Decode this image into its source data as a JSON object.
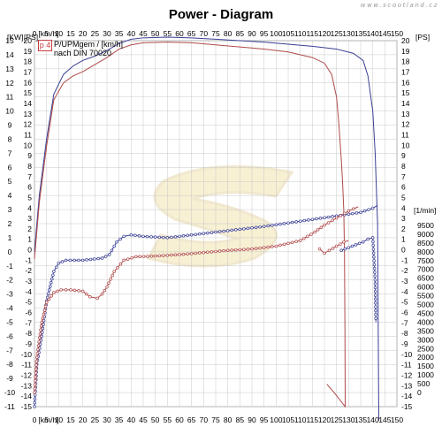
{
  "title": "Power - Diagram",
  "watermark": "www.scootland.cz",
  "legend": {
    "box_label": "p 4",
    "line1": "P/UPMgem / [km/h]",
    "line2": "nach DIN 70020"
  },
  "colors": {
    "blue": "#3a3f94",
    "red": "#b04a4a",
    "grid": "#c8c8c8",
    "watermark_logo": "#f2e4b0"
  },
  "chart_data": {
    "type": "line",
    "title": "Power - Diagram",
    "grid": true,
    "axes": {
      "top_x": {
        "label": "[km/h]",
        "ticks": [
          "0",
          "5",
          "10",
          "15",
          "20",
          "25",
          "30",
          "35",
          "40",
          "45",
          "50",
          "55",
          "60",
          "65",
          "70",
          "75",
          "80",
          "85",
          "90",
          "95",
          "100",
          "105",
          "110",
          "115",
          "120",
          "125",
          "130",
          "135",
          "140",
          "145",
          "150"
        ]
      },
      "bottom_x": {
        "label": "[km/h]",
        "ticks": [
          "0",
          "5",
          "10",
          "15",
          "20",
          "25",
          "30",
          "35",
          "40",
          "45",
          "50",
          "55",
          "60",
          "65",
          "70",
          "75",
          "80",
          "85",
          "90",
          "95",
          "100",
          "105",
          "110",
          "115",
          "120",
          "125",
          "130",
          "135",
          "140",
          "145",
          "150"
        ]
      },
      "left_kw": {
        "label": "[KW]",
        "ticks": [
          "15",
          "14",
          "13",
          "12",
          "11",
          "10",
          "9",
          "8",
          "7",
          "6",
          "5",
          "4",
          "3",
          "2",
          "1",
          "0",
          "-1",
          "-2",
          "-3",
          "-4",
          "-5",
          "-6",
          "-7",
          "-8",
          "-9",
          "-10",
          "-11"
        ]
      },
      "left_ps": {
        "label": "[PS]",
        "ticks": [
          "20",
          "19",
          "18",
          "17",
          "16",
          "15",
          "14",
          "13",
          "12",
          "11",
          "10",
          "9",
          "8",
          "7",
          "6",
          "5",
          "4",
          "3",
          "2",
          "1",
          "0",
          "-1",
          "-2",
          "-3",
          "-4",
          "-5",
          "-6",
          "-7",
          "-8",
          "-9",
          "-10",
          "-11",
          "-12",
          "-13",
          "-14",
          "-15"
        ]
      },
      "right_ps": {
        "label": "[PS]",
        "ticks": [
          "20",
          "19",
          "18",
          "17",
          "16",
          "15",
          "14",
          "13",
          "12",
          "11",
          "10",
          "9",
          "8",
          "7",
          "6",
          "5",
          "4",
          "3",
          "2",
          "1",
          "0",
          "-1",
          "-2",
          "-3",
          "-4",
          "-5",
          "-6",
          "-7",
          "-8",
          "-9",
          "-10",
          "-11",
          "-12",
          "-13",
          "-14",
          "-15"
        ]
      },
      "right_rpm": {
        "label": "[1/min]",
        "ticks": [
          "9500",
          "9000",
          "8500",
          "8000",
          "7500",
          "7000",
          "6500",
          "6000",
          "5500",
          "5000",
          "4500",
          "4000",
          "3500",
          "3000",
          "2500",
          "2000",
          "1500",
          "1000",
          "500",
          "0"
        ]
      }
    },
    "series": [
      {
        "color": "#3a3f94",
        "kind": "power",
        "points": [
          [
            0,
            0
          ],
          [
            2,
            4
          ],
          [
            5,
            8
          ],
          [
            8,
            11.2
          ],
          [
            12,
            12.6
          ],
          [
            16,
            13.2
          ],
          [
            20,
            13.6
          ],
          [
            25,
            13.9
          ],
          [
            30,
            14.3
          ],
          [
            35,
            14.8
          ],
          [
            40,
            15.1
          ],
          [
            45,
            15.2
          ],
          [
            55,
            15.25
          ],
          [
            65,
            15.2
          ],
          [
            75,
            15.1
          ],
          [
            85,
            15
          ],
          [
            95,
            14.9
          ],
          [
            105,
            14.75
          ],
          [
            115,
            14.6
          ],
          [
            125,
            14.4
          ],
          [
            132,
            14.1
          ],
          [
            136,
            13.6
          ],
          [
            138,
            12.5
          ],
          [
            140,
            10
          ],
          [
            141,
            7
          ],
          [
            142,
            2
          ],
          [
            142.5,
            -12
          ]
        ]
      },
      {
        "color": "#b04a4a",
        "kind": "power",
        "points": [
          [
            0,
            -0.5
          ],
          [
            2,
            3.5
          ],
          [
            5,
            7.5
          ],
          [
            8,
            10.8
          ],
          [
            12,
            12
          ],
          [
            16,
            12.5
          ],
          [
            20,
            12.8
          ],
          [
            25,
            13.3
          ],
          [
            30,
            13.8
          ],
          [
            35,
            14.4
          ],
          [
            40,
            14.7
          ],
          [
            45,
            14.85
          ],
          [
            55,
            14.9
          ],
          [
            65,
            14.85
          ],
          [
            75,
            14.7
          ],
          [
            85,
            14.55
          ],
          [
            95,
            14.4
          ],
          [
            105,
            14.2
          ],
          [
            115,
            13.8
          ],
          [
            120,
            13.4
          ],
          [
            123,
            12.6
          ],
          [
            125,
            11
          ],
          [
            126,
            9
          ],
          [
            127,
            6.5
          ],
          [
            127.5,
            5
          ],
          [
            128,
            3
          ],
          [
            128.3,
            0
          ],
          [
            128.5,
            -6
          ],
          [
            128.6,
            -11
          ],
          [
            124,
            -10
          ],
          [
            121,
            -9.4
          ]
        ]
      },
      {
        "color": "#3a3f94",
        "kind": "rpm",
        "points": [
          [
            0,
            -11
          ],
          [
            1,
            -8
          ],
          [
            3,
            -6
          ],
          [
            5,
            -3.5
          ],
          [
            8,
            -1.4
          ],
          [
            10,
            -0.8
          ],
          [
            13,
            -0.6
          ],
          [
            20,
            -0.6
          ],
          [
            28,
            -0.45
          ],
          [
            31,
            -0.2
          ],
          [
            34,
            0.7
          ],
          [
            37,
            1.1
          ],
          [
            40,
            1.2
          ],
          [
            45,
            1.1
          ],
          [
            55,
            1
          ],
          [
            65,
            1.2
          ],
          [
            75,
            1.4
          ],
          [
            85,
            1.6
          ],
          [
            95,
            1.8
          ],
          [
            105,
            2.05
          ],
          [
            115,
            2.3
          ],
          [
            125,
            2.55
          ],
          [
            135,
            2.8
          ],
          [
            140,
            3.1
          ],
          [
            142,
            3.3
          ]
        ]
      },
      {
        "color": "#b04a4a",
        "kind": "rpm",
        "points": [
          [
            0,
            -10
          ],
          [
            1,
            -7.5
          ],
          [
            3,
            -5
          ],
          [
            5,
            -3.6
          ],
          [
            8,
            -2.9
          ],
          [
            11,
            -2.7
          ],
          [
            15,
            -2.7
          ],
          [
            20,
            -2.8
          ],
          [
            23,
            -3.2
          ],
          [
            26,
            -3.3
          ],
          [
            28,
            -3
          ],
          [
            30,
            -2.5
          ],
          [
            33,
            -1.4
          ],
          [
            37,
            -0.6
          ],
          [
            42,
            -0.35
          ],
          [
            50,
            -0.3
          ],
          [
            60,
            -0.2
          ],
          [
            70,
            -0.05
          ],
          [
            80,
            0.1
          ],
          [
            90,
            0.2
          ],
          [
            100,
            0.4
          ],
          [
            110,
            0.8
          ],
          [
            116,
            1.4
          ],
          [
            120,
            1.9
          ],
          [
            125,
            2.4
          ],
          [
            130,
            2.9
          ],
          [
            134,
            3.2
          ]
        ]
      },
      {
        "color": "#b04a4a",
        "kind": "rpm",
        "points": [
          [
            118,
            0.2
          ],
          [
            120,
            -0.1
          ],
          [
            122,
            0.1
          ],
          [
            125,
            0.4
          ],
          [
            128,
            0.7
          ],
          [
            130,
            0.8
          ]
        ]
      },
      {
        "color": "#3a3f94",
        "kind": "rpm",
        "points": [
          [
            127,
            0.1
          ],
          [
            130,
            0.3
          ],
          [
            133,
            0.5
          ],
          [
            136,
            0.7
          ],
          [
            138,
            0.9
          ],
          [
            140,
            1
          ],
          [
            141,
            -2
          ],
          [
            141.3,
            -5
          ]
        ]
      }
    ]
  }
}
